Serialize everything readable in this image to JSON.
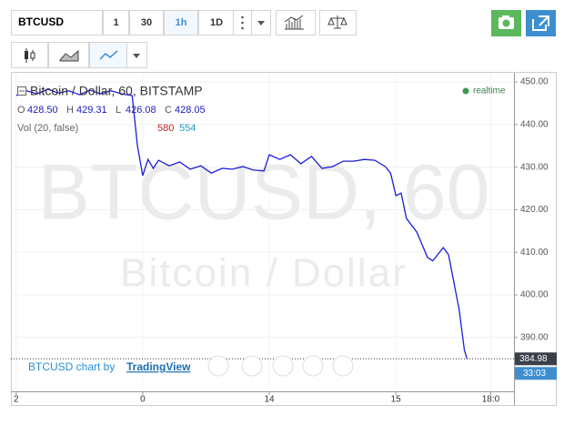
{
  "toolbar": {
    "symbol": "BTCUSD",
    "intervals": [
      "1",
      "30",
      "1h",
      "1D"
    ],
    "active_interval": 2
  },
  "chart_data": {
    "type": "line",
    "title": "Bitcoin / Dollar, 60, BITSTAMP",
    "watermark": [
      "BTCUSD, 60",
      "Bitcoin / Dollar"
    ],
    "ohlc": [
      [
        "O",
        "428.50"
      ],
      [
        "H",
        "429.31"
      ],
      [
        "L",
        "426.08"
      ],
      [
        "C",
        "428.05"
      ]
    ],
    "volume_legend": "Vol (20, false)",
    "volume_values": [
      "580",
      "554"
    ],
    "status": "realtime",
    "countdown": "33:03",
    "credit": "BTCUSD chart by",
    "credit_link": "TradingView",
    "color": "#1d1ddb",
    "x": [
      -24,
      -22,
      -20,
      -18,
      -16,
      -14,
      -12,
      -10,
      -8,
      -6,
      -4,
      -2,
      -1,
      0,
      1,
      2,
      3,
      5,
      7,
      9,
      11,
      13,
      15,
      17,
      19,
      21,
      23,
      24,
      26,
      28,
      30,
      32,
      34,
      36,
      38,
      40,
      42,
      44,
      46,
      47,
      48,
      49,
      50,
      52,
      54,
      55,
      57,
      58,
      59,
      60,
      61,
      61.5
    ],
    "values": [
      446.8,
      447.9,
      447.2,
      448.3,
      447.4,
      447.9,
      447.0,
      448.1,
      447.2,
      447.9,
      447.2,
      446.8,
      435.0,
      428.0,
      431.8,
      429.7,
      431.6,
      430.3,
      431.2,
      429.5,
      430.3,
      428.6,
      429.7,
      429.5,
      430.1,
      429.3,
      429.1,
      432.9,
      431.8,
      432.9,
      430.8,
      432.5,
      429.7,
      430.1,
      431.4,
      431.4,
      431.8,
      431.6,
      430.1,
      428.6,
      423.3,
      423.9,
      418.0,
      414.7,
      408.8,
      408.0,
      411.1,
      409.4,
      403.0,
      396.6,
      387.0,
      384.98
    ],
    "last_price": 384.98,
    "xlim": [
      -25,
      70.4
    ],
    "ylim": [
      377.35,
      452.14
    ],
    "xticks": [
      {
        "value": -24,
        "label": "2"
      },
      0,
      {
        "value": 24,
        "label": "14"
      },
      {
        "value": 48,
        "label": "15"
      },
      {
        "value": 66,
        "label": "18:0"
      }
    ],
    "yticks": [
      {
        "value": 450,
        "label": "450.00"
      },
      {
        "value": 440,
        "label": "440.00"
      },
      {
        "value": 430,
        "label": "430.00"
      },
      {
        "value": 420,
        "label": "420.00"
      },
      {
        "value": 410,
        "label": "410.00"
      },
      {
        "value": 400,
        "label": "400.00"
      },
      {
        "value": 390,
        "label": "390.00"
      }
    ],
    "grid": true
  }
}
